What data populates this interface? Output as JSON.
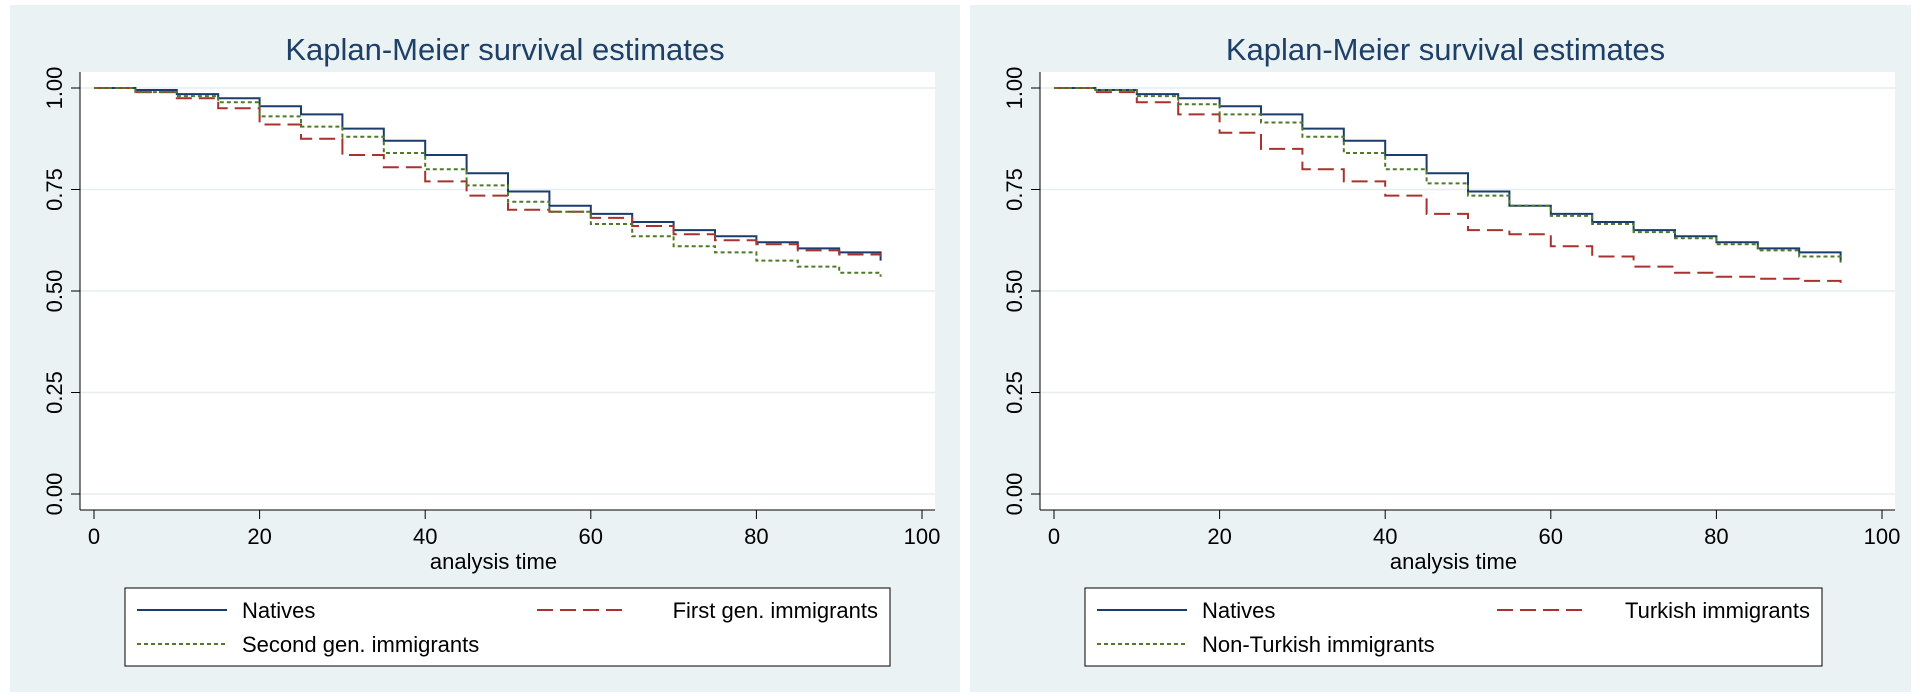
{
  "chart_data": [
    {
      "type": "line",
      "title": "Kaplan-Meier survival estimates",
      "xlabel": "analysis time",
      "ylabel": "",
      "xlim": [
        0,
        100
      ],
      "ylim": [
        0,
        1
      ],
      "xticks": [
        "0",
        "20",
        "40",
        "60",
        "80",
        "100"
      ],
      "yticks": [
        "0.00",
        "0.25",
        "0.50",
        "0.75",
        "1.00"
      ],
      "grid": true,
      "legend_position": "bottom",
      "series": [
        {
          "name": "Natives",
          "color": "#1a3c6e",
          "dash": "solid",
          "x": [
            0,
            5,
            10,
            15,
            20,
            25,
            30,
            35,
            40,
            45,
            50,
            55,
            60,
            65,
            70,
            75,
            80,
            85,
            90,
            95
          ],
          "y": [
            1.0,
            0.995,
            0.985,
            0.975,
            0.955,
            0.935,
            0.9,
            0.87,
            0.835,
            0.79,
            0.745,
            0.71,
            0.69,
            0.67,
            0.65,
            0.635,
            0.62,
            0.605,
            0.595,
            0.575
          ]
        },
        {
          "name": "First gen. immigrants",
          "color": "#a8322e",
          "dash": "long",
          "x": [
            0,
            5,
            10,
            15,
            20,
            25,
            30,
            35,
            40,
            45,
            50,
            55,
            60,
            65,
            70,
            75,
            80,
            85,
            90,
            95
          ],
          "y": [
            1.0,
            0.99,
            0.975,
            0.95,
            0.91,
            0.875,
            0.835,
            0.805,
            0.77,
            0.735,
            0.7,
            0.695,
            0.68,
            0.66,
            0.64,
            0.625,
            0.615,
            0.6,
            0.59,
            0.585
          ]
        },
        {
          "name": "Second gen. immigrants",
          "color": "#4f7a28",
          "dash": "short",
          "x": [
            0,
            5,
            10,
            15,
            20,
            25,
            30,
            35,
            40,
            45,
            50,
            55,
            60,
            65,
            70,
            75,
            80,
            85,
            90,
            95
          ],
          "y": [
            1.0,
            0.99,
            0.98,
            0.965,
            0.93,
            0.905,
            0.88,
            0.84,
            0.8,
            0.76,
            0.72,
            0.695,
            0.665,
            0.635,
            0.61,
            0.595,
            0.575,
            0.56,
            0.545,
            0.535
          ]
        }
      ]
    },
    {
      "type": "line",
      "title": "Kaplan-Meier survival estimates",
      "xlabel": "analysis time",
      "ylabel": "",
      "xlim": [
        0,
        100
      ],
      "ylim": [
        0,
        1
      ],
      "xticks": [
        "0",
        "20",
        "40",
        "60",
        "80",
        "100"
      ],
      "yticks": [
        "0.00",
        "0.25",
        "0.50",
        "0.75",
        "1.00"
      ],
      "grid": true,
      "legend_position": "bottom",
      "series": [
        {
          "name": "Natives",
          "color": "#1a3c6e",
          "dash": "solid",
          "x": [
            0,
            5,
            10,
            15,
            20,
            25,
            30,
            35,
            40,
            45,
            50,
            55,
            60,
            65,
            70,
            75,
            80,
            85,
            90,
            95
          ],
          "y": [
            1.0,
            0.995,
            0.985,
            0.975,
            0.955,
            0.935,
            0.9,
            0.87,
            0.835,
            0.79,
            0.745,
            0.71,
            0.69,
            0.67,
            0.65,
            0.635,
            0.62,
            0.605,
            0.595,
            0.575
          ]
        },
        {
          "name": "Turkish immigrants",
          "color": "#a8322e",
          "dash": "long",
          "x": [
            0,
            5,
            10,
            15,
            20,
            25,
            30,
            35,
            40,
            45,
            50,
            55,
            60,
            65,
            70,
            75,
            80,
            85,
            90,
            95
          ],
          "y": [
            1.0,
            0.99,
            0.965,
            0.935,
            0.89,
            0.85,
            0.8,
            0.77,
            0.735,
            0.69,
            0.65,
            0.64,
            0.61,
            0.585,
            0.56,
            0.545,
            0.535,
            0.53,
            0.525,
            0.52
          ]
        },
        {
          "name": "Non-Turkish immigrants",
          "color": "#4f7a28",
          "dash": "short",
          "x": [
            0,
            5,
            10,
            15,
            20,
            25,
            30,
            35,
            40,
            45,
            50,
            55,
            60,
            65,
            70,
            75,
            80,
            85,
            90,
            95
          ],
          "y": [
            1.0,
            0.995,
            0.98,
            0.96,
            0.935,
            0.915,
            0.88,
            0.84,
            0.8,
            0.765,
            0.735,
            0.71,
            0.685,
            0.665,
            0.645,
            0.63,
            0.615,
            0.6,
            0.585,
            0.57
          ]
        }
      ]
    }
  ]
}
